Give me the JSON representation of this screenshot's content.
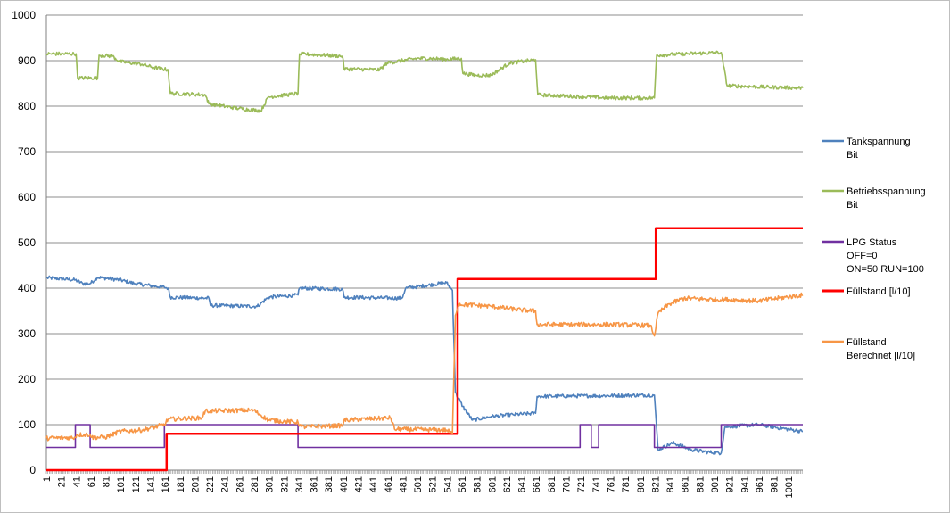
{
  "chart_data": {
    "type": "line",
    "title": "",
    "xlabel": "",
    "ylabel": "",
    "xlim": [
      1,
      1020
    ],
    "ylim": [
      0,
      1000
    ],
    "y_ticks": [
      0,
      100,
      200,
      300,
      400,
      500,
      600,
      700,
      800,
      900,
      1000
    ],
    "x_ticks": [
      1,
      21,
      41,
      61,
      81,
      101,
      121,
      141,
      161,
      181,
      201,
      221,
      241,
      261,
      281,
      301,
      321,
      341,
      361,
      381,
      401,
      421,
      441,
      461,
      481,
      501,
      521,
      541,
      561,
      581,
      601,
      621,
      641,
      661,
      681,
      701,
      721,
      741,
      761,
      781,
      801,
      821,
      841,
      861,
      881,
      901,
      921,
      941,
      961,
      981,
      1001
    ],
    "grid": true,
    "legend_position": "right",
    "series": [
      {
        "name": "Tankspannung Bit",
        "legend_lines": [
          "Tankspannung",
          "Bit"
        ],
        "color": "#4f81bd",
        "noise": 4,
        "points": [
          [
            1,
            423
          ],
          [
            40,
            418
          ],
          [
            50,
            410
          ],
          [
            60,
            410
          ],
          [
            70,
            424
          ],
          [
            100,
            418
          ],
          [
            120,
            410
          ],
          [
            140,
            406
          ],
          [
            160,
            402
          ],
          [
            165,
            400
          ],
          [
            168,
            380
          ],
          [
            220,
            378
          ],
          [
            222,
            362
          ],
          [
            285,
            360
          ],
          [
            300,
            380
          ],
          [
            340,
            385
          ],
          [
            342,
            400
          ],
          [
            400,
            398
          ],
          [
            402,
            380
          ],
          [
            480,
            378
          ],
          [
            485,
            400
          ],
          [
            540,
            412
          ],
          [
            548,
            395
          ],
          [
            552,
            170
          ],
          [
            562,
            140
          ],
          [
            575,
            110
          ],
          [
            600,
            118
          ],
          [
            630,
            122
          ],
          [
            660,
            125
          ],
          [
            662,
            162
          ],
          [
            820,
            165
          ],
          [
            825,
            45
          ],
          [
            845,
            60
          ],
          [
            870,
            45
          ],
          [
            890,
            40
          ],
          [
            910,
            38
          ],
          [
            915,
            95
          ],
          [
            960,
            100
          ],
          [
            1020,
            85
          ]
        ]
      },
      {
        "name": "Betriebsspannung Bit",
        "legend_lines": [
          "Betriebsspannung",
          "Bit"
        ],
        "color": "#9bbb59",
        "noise": 4,
        "points": [
          [
            1,
            915
          ],
          [
            41,
            915
          ],
          [
            43,
            862
          ],
          [
            70,
            862
          ],
          [
            72,
            912
          ],
          [
            90,
            910
          ],
          [
            100,
            898
          ],
          [
            130,
            892
          ],
          [
            145,
            885
          ],
          [
            165,
            880
          ],
          [
            168,
            828
          ],
          [
            215,
            825
          ],
          [
            220,
            805
          ],
          [
            260,
            795
          ],
          [
            290,
            790
          ],
          [
            300,
            820
          ],
          [
            340,
            828
          ],
          [
            342,
            915
          ],
          [
            400,
            910
          ],
          [
            402,
            882
          ],
          [
            450,
            880
          ],
          [
            460,
            895
          ],
          [
            500,
            905
          ],
          [
            520,
            905
          ],
          [
            540,
            903
          ],
          [
            560,
            905
          ],
          [
            562,
            872
          ],
          [
            580,
            868
          ],
          [
            600,
            868
          ],
          [
            625,
            895
          ],
          [
            660,
            902
          ],
          [
            663,
            825
          ],
          [
            760,
            818
          ],
          [
            820,
            818
          ],
          [
            823,
            912
          ],
          [
            860,
            915
          ],
          [
            910,
            918
          ],
          [
            918,
            845
          ],
          [
            970,
            842
          ],
          [
            1020,
            840
          ]
        ]
      },
      {
        "name": "LPG Status OFF=0 ON=50 RUN=100",
        "legend_lines": [
          "LPG Status",
          "OFF=0",
          "ON=50 RUN=100"
        ],
        "color": "#7030a0",
        "noise": 0,
        "points": [
          [
            1,
            50
          ],
          [
            40,
            50
          ],
          [
            40,
            100
          ],
          [
            60,
            100
          ],
          [
            60,
            50
          ],
          [
            160,
            50
          ],
          [
            160,
            100
          ],
          [
            340,
            100
          ],
          [
            340,
            50
          ],
          [
            720,
            50
          ],
          [
            720,
            100
          ],
          [
            735,
            100
          ],
          [
            735,
            50
          ],
          [
            745,
            50
          ],
          [
            745,
            100
          ],
          [
            820,
            100
          ],
          [
            820,
            50
          ],
          [
            910,
            50
          ],
          [
            910,
            100
          ],
          [
            1020,
            100
          ]
        ]
      },
      {
        "name": "Füllstand [l/10]",
        "legend_lines": [
          "Füllstand [l/10]"
        ],
        "color": "#ff0000",
        "width": 2.5,
        "noise": 0,
        "points": [
          [
            1,
            0
          ],
          [
            163,
            0
          ],
          [
            163,
            80
          ],
          [
            555,
            80
          ],
          [
            555,
            420
          ],
          [
            822,
            420
          ],
          [
            822,
            532
          ],
          [
            1020,
            532
          ]
        ]
      },
      {
        "name": "Füllstand Berechnet [l/10]",
        "legend_lines": [
          "Füllstand",
          "Berechnet [l/10]"
        ],
        "color": "#f79646",
        "noise": 5,
        "points": [
          [
            1,
            70
          ],
          [
            40,
            72
          ],
          [
            42,
            78
          ],
          [
            60,
            78
          ],
          [
            62,
            72
          ],
          [
            80,
            72
          ],
          [
            100,
            85
          ],
          [
            130,
            88
          ],
          [
            160,
            100
          ],
          [
            165,
            112
          ],
          [
            210,
            115
          ],
          [
            215,
            130
          ],
          [
            280,
            132
          ],
          [
            300,
            110
          ],
          [
            340,
            105
          ],
          [
            345,
            95
          ],
          [
            400,
            98
          ],
          [
            402,
            110
          ],
          [
            465,
            115
          ],
          [
            470,
            90
          ],
          [
            540,
            88
          ],
          [
            548,
            80
          ],
          [
            552,
            340
          ],
          [
            556,
            365
          ],
          [
            600,
            360
          ],
          [
            640,
            352
          ],
          [
            660,
            350
          ],
          [
            662,
            320
          ],
          [
            740,
            320
          ],
          [
            760,
            320
          ],
          [
            815,
            318
          ],
          [
            820,
            295
          ],
          [
            825,
            345
          ],
          [
            840,
            365
          ],
          [
            860,
            378
          ],
          [
            900,
            375
          ],
          [
            920,
            375
          ],
          [
            960,
            372
          ],
          [
            1020,
            385
          ]
        ]
      }
    ]
  }
}
